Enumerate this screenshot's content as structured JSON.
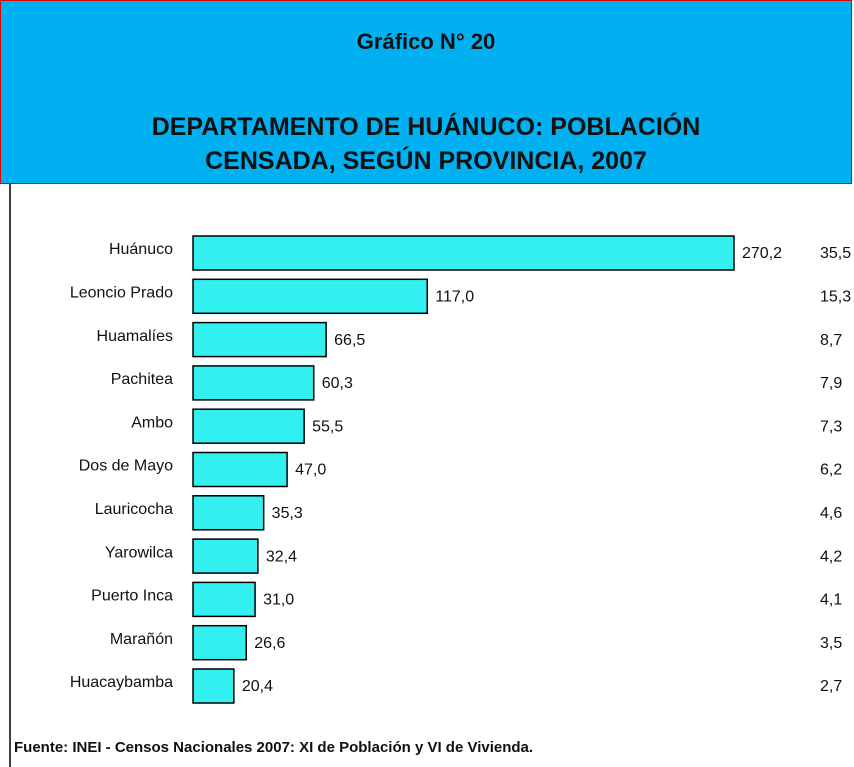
{
  "chart_data": {
    "type": "bar",
    "orientation": "horizontal",
    "subtitle": "Gráfico N° 20",
    "title_lines": [
      "DEPARTAMENTO DE HUÁNUCO: POBLACIÓN",
      "CENSADA, SEGÚN PROVINCIA, 2007"
    ],
    "categories": [
      "Huánuco",
      "Leoncio Prado",
      "Huamalíes",
      "Pachitea",
      "Ambo",
      "Dos de Mayo",
      "Lauricocha",
      "Yarowilca",
      "Puerto Inca",
      "Marañón",
      "Huacaybamba"
    ],
    "values": [
      270.2,
      117.0,
      66.5,
      60.3,
      55.5,
      47.0,
      35.3,
      32.4,
      31.0,
      26.6,
      20.4
    ],
    "value_labels": [
      "270,2",
      "117,0",
      "66,5",
      "60,3",
      "55,5",
      "47,0",
      "35,3",
      "32,4",
      "31,0",
      "26,6",
      "20,4"
    ],
    "share_labels": [
      "35,5",
      "15,3",
      "8,7",
      "7,9",
      "7,3",
      "6,2",
      "4,6",
      "4,2",
      "4,1",
      "3,5",
      "2,7"
    ],
    "color": "#33f0f0",
    "source": "Fuente: INEI - Censos Nacionales 2007: XI de Población y VI de Vivienda."
  }
}
